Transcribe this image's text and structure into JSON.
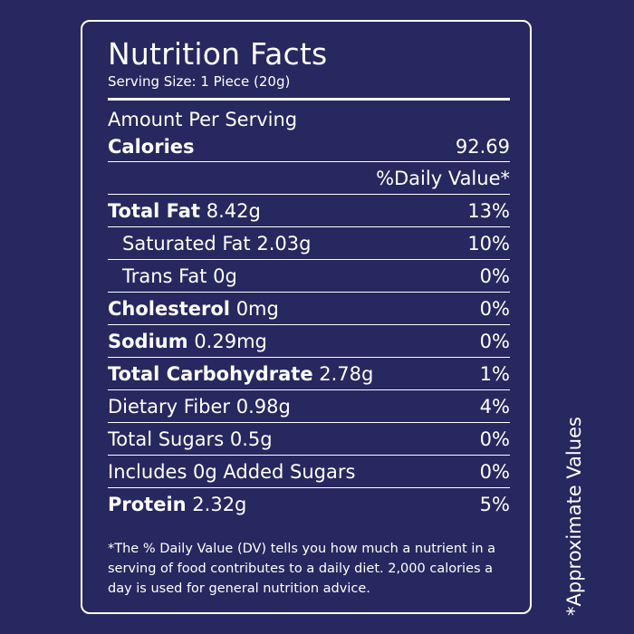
{
  "label": {
    "title": "Nutrition Facts",
    "serving_size": "Serving Size: 1 Piece (20g)",
    "amount_per_serving": "Amount Per Serving",
    "calories_label": "Calories",
    "calories_value": "92.69",
    "daily_value_header": "%Daily Value*",
    "nutrients": [
      {
        "name": "Total Fat",
        "amount": "8.42g",
        "dv": "13%",
        "bold": true,
        "indent": false
      },
      {
        "name": "Saturated Fat",
        "amount": "2.03g",
        "dv": "10%",
        "bold": false,
        "indent": true
      },
      {
        "name": "Trans Fat",
        "amount": "0g",
        "dv": "0%",
        "bold": false,
        "indent": true
      },
      {
        "name": "Cholesterol",
        "amount": "0mg",
        "dv": "0%",
        "bold": true,
        "indent": false
      },
      {
        "name": "Sodium",
        "amount": "0.29mg",
        "dv": "0%",
        "bold": true,
        "indent": false
      },
      {
        "name": "Total Carbohydrate",
        "amount": "2.78g",
        "dv": "1%",
        "bold": true,
        "indent": false
      },
      {
        "name": "Dietary Fiber",
        "amount": "0.98g",
        "dv": "4%",
        "bold": false,
        "indent": false
      },
      {
        "name": "Total Sugars",
        "amount": "0.5g",
        "dv": "0%",
        "bold": false,
        "indent": false
      },
      {
        "name": "Includes 0g Added Sugars",
        "amount": "",
        "dv": "0%",
        "bold": false,
        "indent": false
      },
      {
        "name": "Protein",
        "amount": "2.32g",
        "dv": "5%",
        "bold": true,
        "indent": false
      }
    ],
    "footnote": "*The % Daily Value (DV) tells you how much a nutrient in a serving of food contributes to a daily diet. 2,000 calories a day is used for general nutrition advice."
  },
  "side_note": "*Approximate Values",
  "colors": {
    "background": "#27285f",
    "text": "#ffffff",
    "border": "#ffffff"
  }
}
